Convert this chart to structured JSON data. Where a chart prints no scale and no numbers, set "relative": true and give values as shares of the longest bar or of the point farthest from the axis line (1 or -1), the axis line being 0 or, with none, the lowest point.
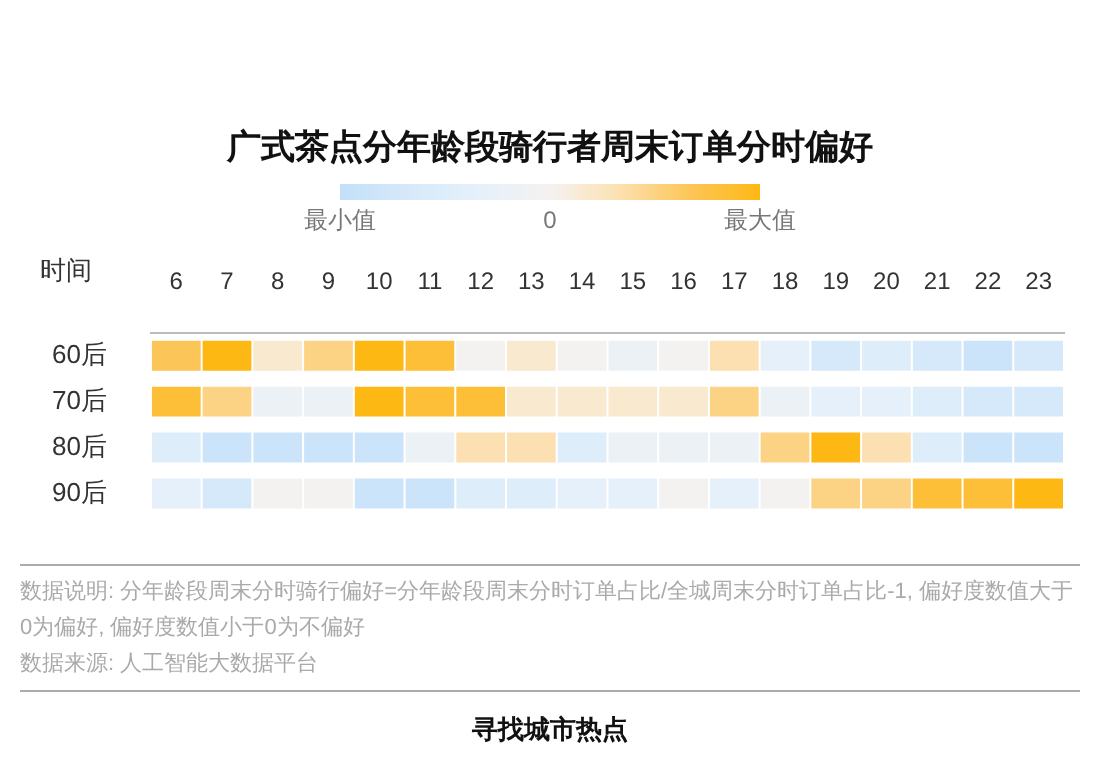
{
  "chart_data": {
    "type": "heatmap",
    "title": "广式茶点分年龄段骑行者周末订单分时偏好",
    "xlabel": "时间",
    "relative": true,
    "categories": [
      "6",
      "7",
      "8",
      "9",
      "10",
      "11",
      "12",
      "13",
      "14",
      "15",
      "16",
      "17",
      "18",
      "19",
      "20",
      "21",
      "22",
      "23"
    ],
    "y_categories": [
      "60后",
      "70后",
      "80后",
      "90后"
    ],
    "cells": [
      [
        0.67,
        1,
        0.17,
        0.5,
        1,
        0.83,
        0,
        0.17,
        0,
        -0.17,
        0,
        0.33,
        -0.33,
        -0.67,
        -0.5,
        -0.67,
        -0.83,
        -0.67
      ],
      [
        0.83,
        0.5,
        -0.17,
        -0.17,
        1,
        0.83,
        0.83,
        0.17,
        0.17,
        0.17,
        0.17,
        0.5,
        -0.17,
        -0.33,
        -0.33,
        -0.5,
        -0.67,
        -0.67
      ],
      [
        -0.5,
        -0.83,
        -0.83,
        -0.83,
        -0.83,
        -0.17,
        0.33,
        0.33,
        -0.5,
        -0.17,
        -0.17,
        -0.17,
        0.5,
        1,
        0.33,
        -0.5,
        -0.83,
        -0.83
      ],
      [
        -0.33,
        -0.67,
        0,
        0,
        -0.83,
        -0.83,
        -0.5,
        -0.5,
        -0.33,
        -0.33,
        0,
        -0.33,
        0,
        0.5,
        0.5,
        0.83,
        0.83,
        1
      ]
    ],
    "cticks": [
      {
        "value": -1,
        "label": "最小值"
      },
      {
        "value": 0,
        "label": "0"
      },
      {
        "value": 1,
        "label": "最大值"
      }
    ],
    "annotations": [
      "数据说明: 分年龄段周末分时骑行偏好=分年龄段周末分时订单占比/全城周末分时订单占比-1, 偏好度数值大于0为偏好, 偏好度数值小于0为不偏好",
      "数据来源: 人工智能大数据平台",
      "寻找城市热点"
    ]
  }
}
